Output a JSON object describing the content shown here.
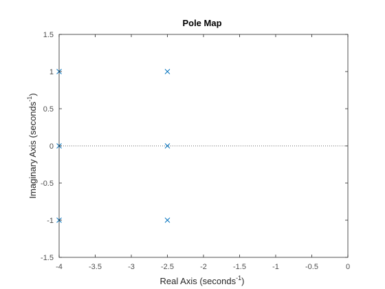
{
  "chart_data": {
    "type": "scatter",
    "title": "Pole Map",
    "xlabel": {
      "text": "Real Axis (seconds",
      "sup": "-1",
      "close": ")"
    },
    "ylabel": {
      "text": "Imaginary Axis (seconds",
      "sup": "-1",
      "close": ")"
    },
    "xlim": [
      -4,
      0
    ],
    "ylim": [
      -1.5,
      1.5
    ],
    "xticks": [
      -4,
      -3.5,
      -3,
      -2.5,
      -2,
      -1.5,
      -1,
      -0.5,
      0
    ],
    "xtick_labels": [
      "-4",
      "-3.5",
      "-3",
      "-2.5",
      "-2",
      "-1.5",
      "-1",
      "-0.5",
      "0"
    ],
    "yticks": [
      -1.5,
      -1,
      -0.5,
      0,
      0.5,
      1,
      1.5
    ],
    "ytick_labels": [
      "-1.5",
      "-1",
      "-0.5",
      "0",
      "0.5",
      "1",
      "1.5"
    ],
    "grid": false,
    "zero_line": {
      "y": 0,
      "style": "dotted"
    },
    "marker": "x",
    "marker_color": "#0072bd",
    "points": [
      {
        "x": -4,
        "y": 1
      },
      {
        "x": -4,
        "y": 0
      },
      {
        "x": -4,
        "y": -1
      },
      {
        "x": -2.5,
        "y": 1
      },
      {
        "x": -2.5,
        "y": 0
      },
      {
        "x": -2.5,
        "y": -1
      }
    ]
  }
}
